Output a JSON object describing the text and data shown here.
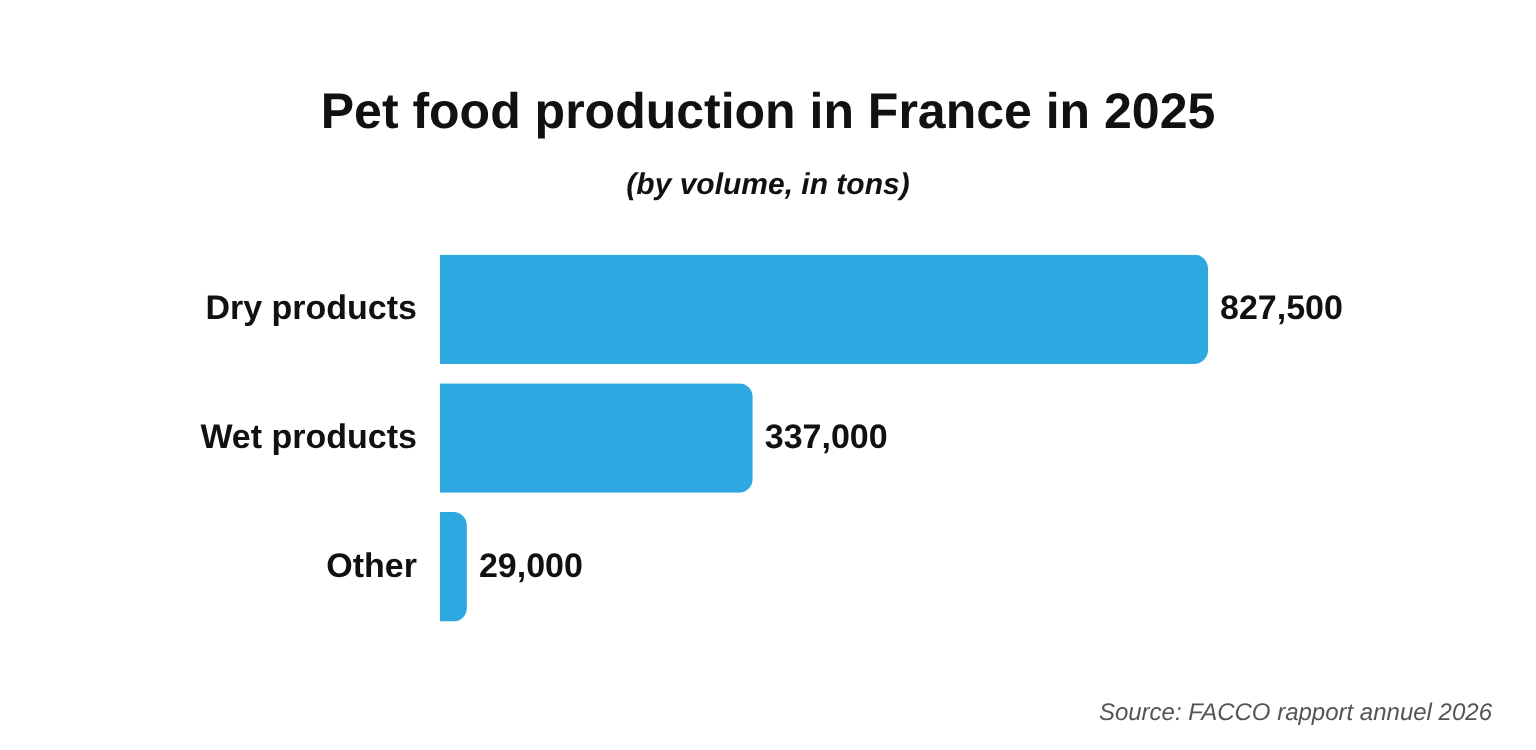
{
  "chart_data": {
    "type": "bar",
    "orientation": "horizontal",
    "title": "Pet food production in France in 2025",
    "subtitle": "(by volume, in tons)",
    "categories": [
      "Dry products",
      "Wet products",
      "Other"
    ],
    "values": [
      827500,
      337000,
      29000
    ],
    "value_labels": [
      "827,500",
      "337,000",
      "29,000"
    ],
    "color": "#2ea8e0",
    "annotations": [
      "Source: FACCO rapport annuel 2026"
    ]
  }
}
